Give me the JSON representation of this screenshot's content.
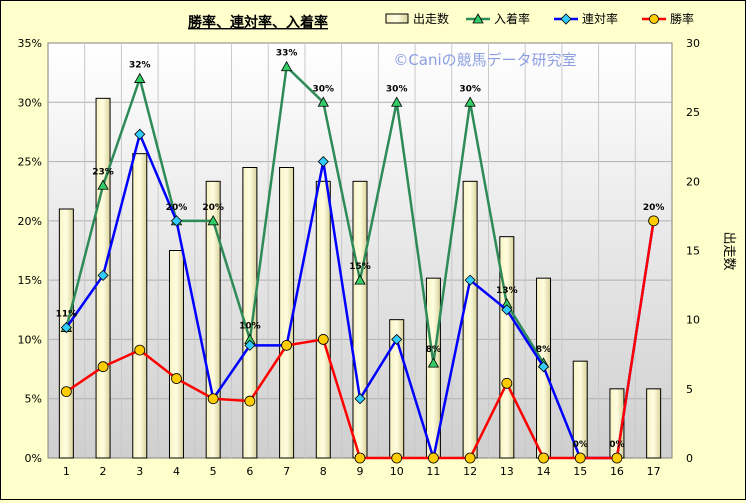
{
  "chart_data": {
    "type": "bar+line",
    "title": "勝率、連対率、入着率",
    "watermark": "©Caniの競馬データ研究室",
    "categories": [
      "1",
      "2",
      "3",
      "4",
      "5",
      "6",
      "7",
      "8",
      "9",
      "10",
      "11",
      "12",
      "13",
      "14",
      "15",
      "16",
      "17"
    ],
    "bar_series": {
      "name": "出走数",
      "color": "#f0ecb0",
      "values": [
        18,
        26,
        22,
        15,
        20,
        21,
        21,
        20,
        20,
        10,
        13,
        20,
        16,
        13,
        7,
        5,
        5
      ]
    },
    "line_series": [
      {
        "name": "入着率",
        "color": "#2e8b57",
        "marker": "triangle",
        "values": [
          11,
          23,
          32,
          20,
          20,
          10,
          33,
          30,
          15,
          30,
          8,
          30,
          13,
          8,
          0,
          0,
          20
        ],
        "labels": [
          "11%",
          "23%",
          "32%",
          "20%",
          "20%",
          "10%",
          "33%",
          "30%",
          "15%",
          "30%",
          "8%",
          "30%",
          "13%",
          "8%",
          "0%",
          "0%",
          "20%"
        ]
      },
      {
        "name": "連対率",
        "color": "#0000ff",
        "marker": "diamond",
        "values": [
          11,
          15.4,
          27.3,
          20,
          5,
          9.5,
          9.5,
          25,
          5,
          10,
          0,
          15,
          12.5,
          7.7,
          0,
          0,
          20
        ]
      },
      {
        "name": "勝率",
        "color": "#ff0000",
        "marker": "circle",
        "values": [
          5.6,
          7.7,
          9.1,
          6.7,
          5,
          4.8,
          9.5,
          10,
          0,
          0,
          0,
          0,
          6.3,
          0,
          0,
          0,
          20
        ]
      }
    ],
    "y_left": {
      "min": 0,
      "max": 35,
      "step": 5,
      "ticks": [
        "0%",
        "5%",
        "10%",
        "15%",
        "20%",
        "25%",
        "30%",
        "35%"
      ]
    },
    "y_right": {
      "label": "出走数",
      "min": 0,
      "max": 30,
      "step": 5,
      "ticks": [
        "0",
        "5",
        "10",
        "15",
        "20",
        "25",
        "30"
      ]
    },
    "legend": "top",
    "grid": true
  }
}
